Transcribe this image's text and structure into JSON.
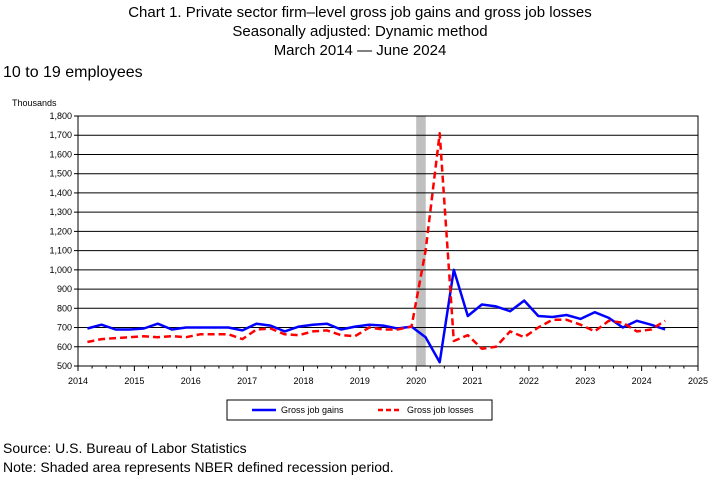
{
  "header": {
    "title_line1": "Chart 1. Private sector firm–level gross job gains and gross job losses",
    "title_line2": "Seasonally adjusted: Dynamic method",
    "title_line3": "March 2014 — June 2024",
    "subtitle": "10 to 19 employees"
  },
  "footer": {
    "source": "Source: U.S. Bureau of Labor Statistics",
    "note": "Note: Shaded area represents NBER defined recession period."
  },
  "colors": {
    "gains": "#0000ff",
    "losses": "#ff0000",
    "recession": "#c0c0c0",
    "grid": "#000000"
  },
  "chart_data": {
    "type": "line",
    "ylabel": "Thousands",
    "xlabel": "",
    "xlim": [
      2014,
      2025
    ],
    "ylim": [
      500,
      1800
    ],
    "yticks": [
      500,
      600,
      700,
      800,
      900,
      1000,
      1100,
      1200,
      1300,
      1400,
      1500,
      1600,
      1700,
      1800
    ],
    "ytick_labels": [
      "500",
      "600",
      "700",
      "800",
      "900",
      "1,000",
      "1,100",
      "1,200",
      "1,300",
      "1,400",
      "1,500",
      "1,600",
      "1,700",
      "1,800"
    ],
    "xticks": [
      2014,
      2015,
      2016,
      2017,
      2018,
      2019,
      2020,
      2021,
      2022,
      2023,
      2024,
      2025
    ],
    "xtick_labels": [
      "2014",
      "2015",
      "2016",
      "2017",
      "2018",
      "2019",
      "2020",
      "2021",
      "2022",
      "2023",
      "2024",
      "2025"
    ],
    "grid": "horizontal",
    "legend_position": "bottom-center",
    "recession_shading": [
      2020.0,
      2020.17
    ],
    "x": [
      "2014-03",
      "2014-06",
      "2014-09",
      "2014-12",
      "2015-03",
      "2015-06",
      "2015-09",
      "2015-12",
      "2016-03",
      "2016-06",
      "2016-09",
      "2016-12",
      "2017-03",
      "2017-06",
      "2017-09",
      "2017-12",
      "2018-03",
      "2018-06",
      "2018-09",
      "2018-12",
      "2019-03",
      "2019-06",
      "2019-09",
      "2019-12",
      "2020-03",
      "2020-06",
      "2020-09",
      "2020-12",
      "2021-03",
      "2021-06",
      "2021-09",
      "2021-12",
      "2022-03",
      "2022-06",
      "2022-09",
      "2022-12",
      "2023-03",
      "2023-06",
      "2023-09",
      "2023-12",
      "2024-03",
      "2024-06"
    ],
    "series": [
      {
        "name": "Gross job gains",
        "style": "solid",
        "values": [
          695,
          715,
          690,
          690,
          695,
          720,
          690,
          700,
          700,
          700,
          700,
          685,
          720,
          710,
          680,
          705,
          715,
          720,
          690,
          705,
          715,
          710,
          695,
          705,
          650,
          520,
          1000,
          760,
          820,
          810,
          785,
          840,
          760,
          755,
          765,
          745,
          780,
          750,
          700,
          735,
          715,
          690
        ]
      },
      {
        "name": "Gross job losses",
        "style": "dashed",
        "values": [
          625,
          640,
          645,
          650,
          655,
          650,
          655,
          650,
          665,
          665,
          665,
          640,
          690,
          695,
          665,
          660,
          680,
          685,
          660,
          655,
          700,
          690,
          690,
          705,
          1100,
          1710,
          630,
          660,
          590,
          600,
          680,
          650,
          700,
          740,
          740,
          715,
          680,
          735,
          725,
          680,
          690,
          735
        ]
      }
    ]
  }
}
